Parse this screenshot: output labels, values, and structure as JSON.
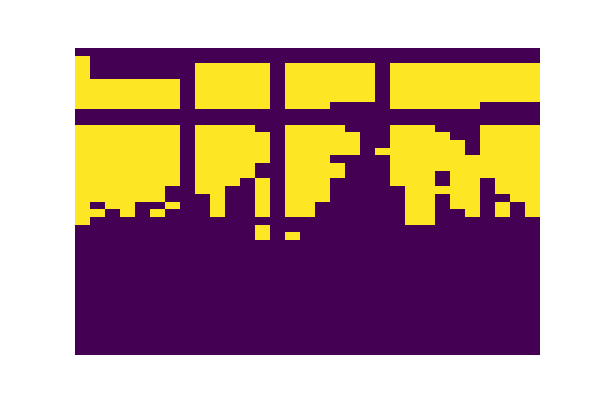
{
  "chart_data": {
    "type": "heatmap",
    "color": "Viridis",
    "tick_labels": false,
    "z": [
      [
        0,
        0,
        0,
        0,
        0,
        0,
        0,
        0,
        0,
        0,
        0,
        0,
        0,
        0,
        0,
        0,
        0,
        0,
        0,
        0,
        0,
        0,
        0,
        0,
        0,
        0,
        0,
        0,
        0,
        0,
        0
      ],
      [
        1,
        0,
        0,
        0,
        0,
        0,
        0,
        0,
        0,
        0,
        0,
        0,
        0,
        0,
        0,
        0,
        0,
        0,
        0,
        0,
        0,
        0,
        0,
        0,
        0,
        0,
        0,
        0,
        0,
        0,
        0
      ],
      [
        1,
        0,
        0,
        0,
        0,
        0,
        0,
        0,
        1,
        1,
        1,
        1,
        1,
        0,
        1,
        1,
        1,
        1,
        1,
        1,
        0,
        1,
        1,
        1,
        1,
        1,
        1,
        1,
        1,
        1,
        1
      ],
      [
        1,
        0,
        0,
        0,
        0,
        0,
        0,
        0,
        1,
        1,
        1,
        1,
        1,
        0,
        1,
        1,
        1,
        1,
        1,
        1,
        0,
        1,
        1,
        1,
        1,
        1,
        1,
        1,
        1,
        1,
        1
      ],
      [
        1,
        1,
        1,
        1,
        1,
        1,
        1,
        0,
        1,
        1,
        1,
        1,
        1,
        0,
        1,
        1,
        1,
        1,
        1,
        1,
        0,
        1,
        1,
        1,
        1,
        1,
        1,
        1,
        1,
        1,
        1
      ],
      [
        1,
        1,
        1,
        1,
        1,
        1,
        1,
        0,
        1,
        1,
        1,
        1,
        1,
        0,
        1,
        1,
        1,
        1,
        1,
        1,
        0,
        1,
        1,
        1,
        1,
        1,
        1,
        1,
        1,
        1,
        1
      ],
      [
        1,
        1,
        1,
        1,
        1,
        1,
        1,
        0,
        1,
        1,
        1,
        1,
        1,
        0,
        1,
        1,
        1,
        1,
        1,
        1,
        0,
        1,
        1,
        1,
        1,
        1,
        1,
        1,
        1,
        1,
        1
      ],
      [
        1,
        1,
        1,
        1,
        1,
        1,
        1,
        0,
        1,
        1,
        1,
        1,
        1,
        0,
        1,
        1,
        1,
        0,
        0,
        0,
        0,
        1,
        1,
        1,
        1,
        1,
        1,
        0,
        0,
        0,
        0
      ],
      [
        0,
        0,
        0,
        0,
        0,
        0,
        0,
        0,
        0,
        0,
        0,
        0,
        0,
        0,
        0,
        0,
        0,
        0,
        0,
        0,
        0,
        0,
        0,
        0,
        0,
        0,
        0,
        0,
        0,
        0,
        0
      ],
      [
        0,
        0,
        0,
        0,
        0,
        0,
        0,
        0,
        0,
        0,
        0,
        0,
        0,
        0,
        0,
        0,
        0,
        0,
        0,
        0,
        0,
        0,
        0,
        0,
        0,
        0,
        0,
        0,
        0,
        0,
        0
      ],
      [
        1,
        1,
        1,
        1,
        1,
        1,
        1,
        0,
        1,
        1,
        1,
        1,
        0,
        0,
        1,
        1,
        1,
        1,
        0,
        0,
        0,
        1,
        1,
        1,
        0,
        0,
        0,
        1,
        1,
        1,
        1
      ],
      [
        1,
        1,
        1,
        1,
        1,
        1,
        1,
        0,
        1,
        1,
        1,
        1,
        1,
        0,
        1,
        1,
        1,
        1,
        1,
        0,
        0,
        1,
        1,
        1,
        1,
        0,
        0,
        1,
        1,
        1,
        1
      ],
      [
        1,
        1,
        1,
        1,
        1,
        1,
        1,
        0,
        1,
        1,
        1,
        1,
        1,
        0,
        1,
        1,
        1,
        1,
        1,
        0,
        0,
        1,
        1,
        1,
        1,
        1,
        0,
        1,
        1,
        1,
        1
      ],
      [
        1,
        1,
        1,
        1,
        1,
        1,
        1,
        0,
        1,
        1,
        1,
        1,
        1,
        0,
        1,
        1,
        1,
        1,
        1,
        0,
        1,
        1,
        1,
        1,
        1,
        1,
        0,
        1,
        1,
        1,
        1
      ],
      [
        1,
        1,
        1,
        1,
        1,
        1,
        1,
        0,
        1,
        1,
        1,
        1,
        1,
        0,
        1,
        1,
        1,
        0,
        0,
        0,
        0,
        1,
        1,
        1,
        1,
        1,
        1,
        1,
        1,
        1,
        1
      ],
      [
        1,
        1,
        1,
        1,
        1,
        1,
        1,
        0,
        1,
        1,
        1,
        1,
        0,
        0,
        1,
        1,
        1,
        1,
        0,
        0,
        0,
        1,
        1,
        1,
        1,
        1,
        1,
        1,
        1,
        1,
        1
      ],
      [
        1,
        1,
        1,
        1,
        1,
        1,
        1,
        0,
        1,
        1,
        1,
        1,
        0,
        0,
        1,
        1,
        1,
        1,
        0,
        0,
        0,
        1,
        1,
        1,
        0,
        1,
        1,
        1,
        1,
        1,
        1
      ],
      [
        1,
        1,
        1,
        1,
        1,
        1,
        1,
        0,
        1,
        1,
        1,
        0,
        1,
        0,
        1,
        1,
        1,
        0,
        0,
        0,
        0,
        1,
        1,
        1,
        0,
        1,
        1,
        0,
        1,
        1,
        1
      ],
      [
        1,
        1,
        1,
        1,
        1,
        1,
        0,
        0,
        1,
        1,
        0,
        0,
        1,
        0,
        1,
        1,
        1,
        0,
        0,
        0,
        0,
        0,
        1,
        1,
        1,
        1,
        1,
        0,
        1,
        1,
        1
      ],
      [
        1,
        1,
        1,
        1,
        1,
        1,
        0,
        0,
        0,
        1,
        0,
        0,
        1,
        0,
        1,
        1,
        1,
        0,
        0,
        0,
        0,
        0,
        1,
        1,
        0,
        1,
        1,
        0,
        0,
        1,
        1
      ],
      [
        1,
        0,
        1,
        1,
        0,
        0,
        1,
        0,
        0,
        1,
        0,
        0,
        1,
        0,
        1,
        1,
        0,
        0,
        0,
        0,
        0,
        0,
        1,
        1,
        0,
        1,
        1,
        0,
        1,
        0,
        1
      ],
      [
        1,
        1,
        0,
        1,
        0,
        1,
        0,
        0,
        0,
        1,
        0,
        0,
        1,
        0,
        1,
        1,
        0,
        0,
        0,
        0,
        0,
        0,
        1,
        1,
        0,
        0,
        1,
        0,
        1,
        0,
        1
      ],
      [
        1,
        0,
        0,
        0,
        0,
        0,
        0,
        0,
        0,
        0,
        0,
        0,
        0,
        0,
        0,
        0,
        0,
        0,
        0,
        0,
        0,
        0,
        1,
        1,
        0,
        0,
        0,
        0,
        0,
        0,
        0
      ],
      [
        0,
        0,
        0,
        0,
        0,
        0,
        0,
        0,
        0,
        0,
        0,
        0,
        1,
        0,
        0,
        0,
        0,
        0,
        0,
        0,
        0,
        0,
        0,
        0,
        0,
        0,
        0,
        0,
        0,
        0,
        0
      ],
      [
        0,
        0,
        0,
        0,
        0,
        0,
        0,
        0,
        0,
        0,
        0,
        0,
        1,
        0,
        1,
        0,
        0,
        0,
        0,
        0,
        0,
        0,
        0,
        0,
        0,
        0,
        0,
        0,
        0,
        0,
        0
      ],
      [
        0,
        0,
        0,
        0,
        0,
        0,
        0,
        0,
        0,
        0,
        0,
        0,
        0,
        0,
        0,
        0,
        0,
        0,
        0,
        0,
        0,
        0,
        0,
        0,
        0,
        0,
        0,
        0,
        0,
        0,
        0
      ],
      [
        0,
        0,
        0,
        0,
        0,
        0,
        0,
        0,
        0,
        0,
        0,
        0,
        0,
        0,
        0,
        0,
        0,
        0,
        0,
        0,
        0,
        0,
        0,
        0,
        0,
        0,
        0,
        0,
        0,
        0,
        0
      ],
      [
        0,
        0,
        0,
        0,
        0,
        0,
        0,
        0,
        0,
        0,
        0,
        0,
        0,
        0,
        0,
        0,
        0,
        0,
        0,
        0,
        0,
        0,
        0,
        0,
        0,
        0,
        0,
        0,
        0,
        0,
        0
      ],
      [
        0,
        0,
        0,
        0,
        0,
        0,
        0,
        0,
        0,
        0,
        0,
        0,
        0,
        0,
        0,
        0,
        0,
        0,
        0,
        0,
        0,
        0,
        0,
        0,
        0,
        0,
        0,
        0,
        0,
        0,
        0
      ],
      [
        0,
        0,
        0,
        0,
        0,
        0,
        0,
        0,
        0,
        0,
        0,
        0,
        0,
        0,
        0,
        0,
        0,
        0,
        0,
        0,
        0,
        0,
        0,
        0,
        0,
        0,
        0,
        0,
        0,
        0,
        0
      ],
      [
        0,
        0,
        0,
        0,
        0,
        0,
        0,
        0,
        0,
        0,
        0,
        0,
        0,
        0,
        0,
        0,
        0,
        0,
        0,
        0,
        0,
        0,
        0,
        0,
        0,
        0,
        0,
        0,
        0,
        0,
        0
      ],
      [
        0,
        0,
        0,
        0,
        0,
        0,
        0,
        0,
        0,
        0,
        0,
        0,
        0,
        0,
        0,
        0,
        0,
        0,
        0,
        0,
        0,
        0,
        0,
        0,
        0,
        0,
        0,
        0,
        0,
        0,
        0
      ],
      [
        0,
        0,
        0,
        0,
        0,
        0,
        0,
        0,
        0,
        0,
        0,
        0,
        0,
        0,
        0,
        0,
        0,
        0,
        0,
        0,
        0,
        0,
        0,
        0,
        0,
        0,
        0,
        0,
        0,
        0,
        0
      ],
      [
        0,
        0,
        0,
        0,
        0,
        0,
        0,
        0,
        0,
        0,
        0,
        0,
        0,
        0,
        0,
        0,
        0,
        0,
        0,
        0,
        0,
        0,
        0,
        0,
        0,
        0,
        0,
        0,
        0,
        0,
        0
      ],
      [
        0,
        0,
        0,
        0,
        0,
        0,
        0,
        0,
        0,
        0,
        0,
        0,
        0,
        0,
        0,
        0,
        0,
        0,
        0,
        0,
        0,
        0,
        0,
        0,
        0,
        0,
        0,
        0,
        0,
        0,
        0
      ],
      [
        0,
        0,
        0,
        0,
        0,
        0,
        0,
        0,
        0,
        0,
        0,
        0,
        0,
        0,
        0,
        0,
        0,
        0,
        0,
        0,
        0,
        0,
        0,
        0,
        0,
        0,
        0,
        0,
        0,
        0,
        0
      ],
      [
        0,
        0,
        0,
        0,
        0,
        0,
        0,
        0,
        0,
        0,
        0,
        0,
        0,
        0,
        0,
        0,
        0,
        0,
        0,
        0,
        0,
        0,
        0,
        0,
        0,
        0,
        0,
        0,
        0,
        0,
        0
      ],
      [
        0,
        0,
        0,
        0,
        0,
        0,
        0,
        0,
        0,
        0,
        0,
        0,
        0,
        0,
        0,
        0,
        0,
        0,
        0,
        0,
        0,
        0,
        0,
        0,
        0,
        0,
        0,
        0,
        0,
        0,
        0
      ],
      [
        0,
        0,
        0,
        0,
        0,
        0,
        0,
        0,
        0,
        0,
        0,
        0,
        0,
        0,
        0,
        0,
        0,
        0,
        0,
        0,
        0,
        0,
        0,
        0,
        0,
        0,
        0,
        0,
        0,
        0,
        0
      ],
      [
        0,
        0,
        0,
        0,
        0,
        0,
        0,
        0,
        0,
        0,
        0,
        0,
        0,
        0,
        0,
        0,
        0,
        0,
        0,
        0,
        0,
        0,
        0,
        0,
        0,
        0,
        0,
        0,
        0,
        0,
        0
      ]
    ]
  }
}
